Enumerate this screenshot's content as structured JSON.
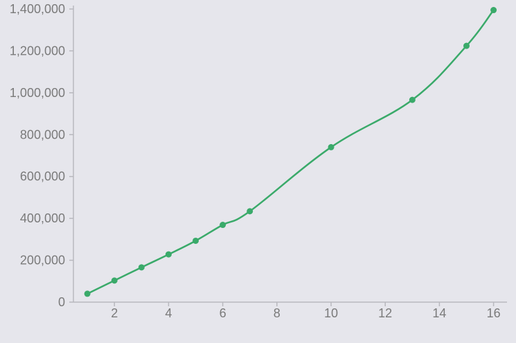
{
  "chart_data": {
    "type": "line",
    "title": "",
    "xlabel": "",
    "ylabel": "",
    "xlim": [
      0,
      16.5
    ],
    "ylim": [
      0,
      1400000
    ],
    "x_ticks": [
      2,
      4,
      6,
      8,
      10,
      12,
      14,
      16
    ],
    "y_ticks": [
      0,
      200000,
      400000,
      600000,
      800000,
      1000000,
      1200000,
      1400000
    ],
    "x_tick_labels": [
      "2",
      "4",
      "6",
      "8",
      "10",
      "12",
      "14",
      "16"
    ],
    "y_tick_labels": [
      "0",
      "200,000",
      "400,000",
      "600,000",
      "800,000",
      "1,000,000",
      "1,200,000",
      "1,400,000"
    ],
    "grid": false,
    "legend": "none",
    "smooth": true,
    "series": [
      {
        "color": "#3aaa6a",
        "points": [
          {
            "x": 1,
            "y": 40000
          },
          {
            "x": 2,
            "y": 103000
          },
          {
            "x": 3,
            "y": 166000
          },
          {
            "x": 4,
            "y": 228000
          },
          {
            "x": 5,
            "y": 293000
          },
          {
            "x": 6,
            "y": 369000
          },
          {
            "x": 7,
            "y": 434000
          },
          {
            "x": 10,
            "y": 740000
          },
          {
            "x": 13,
            "y": 966000
          },
          {
            "x": 15,
            "y": 1224000
          },
          {
            "x": 16,
            "y": 1395000
          }
        ]
      }
    ]
  }
}
